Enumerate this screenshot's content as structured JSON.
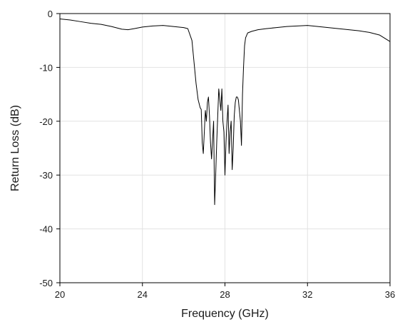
{
  "chart_data": {
    "type": "line",
    "title": "",
    "xlabel": "Frequency (GHz)",
    "ylabel": "Return Loss (dB)",
    "xlim": [
      20,
      36
    ],
    "ylim": [
      -50,
      0
    ],
    "xticks": [
      20,
      24,
      28,
      32,
      36
    ],
    "yticks": [
      0,
      -10,
      -20,
      -30,
      -40,
      -50
    ],
    "x_tick_labels": [
      "20",
      "24",
      "28",
      "32",
      "36"
    ],
    "y_tick_labels": [
      "0",
      "-10",
      "-20",
      "-30",
      "-40",
      "-50"
    ],
    "grid": true,
    "legend": "none",
    "line_color": "#000000",
    "series": [
      {
        "x": [
          20,
          20.5,
          21,
          21.5,
          22,
          22.5,
          23,
          23.3,
          23.6,
          24,
          24.5,
          25,
          25.5,
          26,
          26.2,
          26.4,
          26.5,
          26.6,
          26.7,
          26.8,
          26.85,
          26.9,
          26.95,
          27.0,
          27.05,
          27.1,
          27.15,
          27.2,
          27.25,
          27.3,
          27.35,
          27.4,
          27.45,
          27.5,
          27.55,
          27.6,
          27.65,
          27.7,
          27.75,
          27.8,
          27.85,
          27.9,
          27.95,
          28.0,
          28.05,
          28.1,
          28.15,
          28.2,
          28.25,
          28.3,
          28.35,
          28.4,
          28.45,
          28.5,
          28.55,
          28.6,
          28.65,
          28.7,
          28.75,
          28.8,
          28.85,
          28.9,
          28.95,
          29.0,
          29.1,
          29.3,
          29.6,
          30,
          30.5,
          31,
          31.5,
          32,
          32.5,
          33,
          33.5,
          34,
          34.5,
          35,
          35.5,
          36
        ],
        "y": [
          -1.0,
          -1.2,
          -1.5,
          -1.8,
          -2.0,
          -2.4,
          -2.9,
          -3.0,
          -2.8,
          -2.5,
          -2.3,
          -2.2,
          -2.4,
          -2.6,
          -2.8,
          -5,
          -9,
          -13,
          -16,
          -17.5,
          -17.8,
          -24,
          -26,
          -22,
          -18,
          -20,
          -16.5,
          -15.5,
          -19,
          -24,
          -27,
          -23.5,
          -20,
          -35.5,
          -30,
          -24,
          -19,
          -14,
          -16,
          -18,
          -14,
          -20,
          -22,
          -30,
          -24,
          -20,
          -17,
          -26,
          -22,
          -20,
          -29,
          -25,
          -19,
          -16.5,
          -15.5,
          -15.5,
          -16,
          -18,
          -20,
          -24.5,
          -15,
          -10,
          -6,
          -4.5,
          -3.6,
          -3.3,
          -3.0,
          -2.8,
          -2.6,
          -2.4,
          -2.3,
          -2.2,
          -2.4,
          -2.6,
          -2.8,
          -3.0,
          -3.2,
          -3.5,
          -4.0,
          -5.2
        ]
      }
    ]
  }
}
